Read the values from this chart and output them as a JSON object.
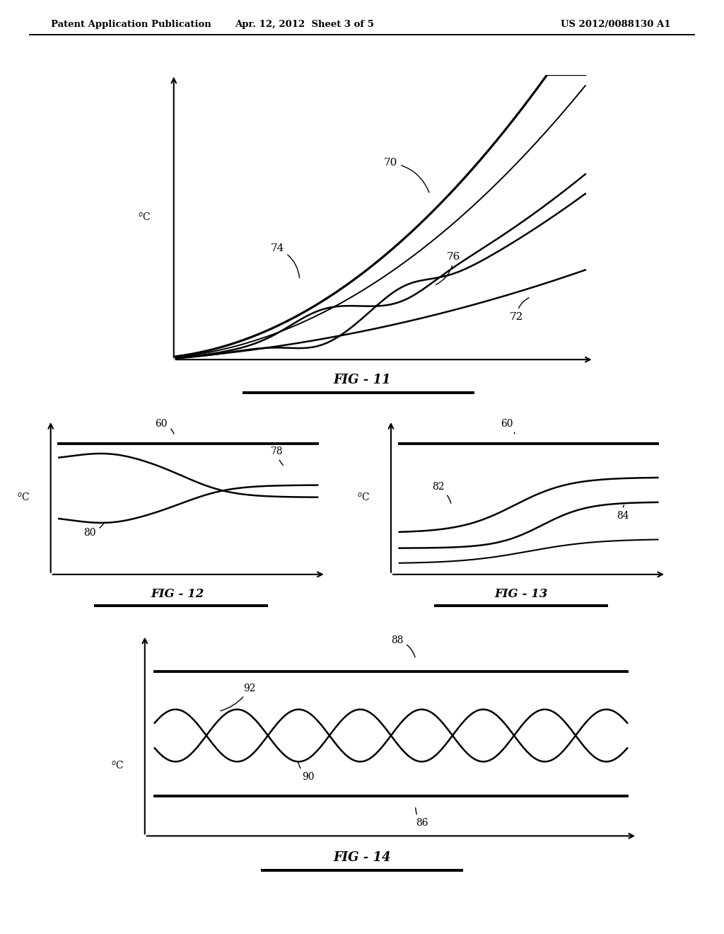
{
  "header_left": "Patent Application Publication",
  "header_mid": "Apr. 12, 2012  Sheet 3 of 5",
  "header_right": "US 2012/0088130 A1",
  "fig11_title": "FIG - 11",
  "fig12_title": "FIG - 12",
  "fig13_title": "FIG - 13",
  "fig14_title": "FIG - 14",
  "background": "#ffffff",
  "line_color": "#000000"
}
